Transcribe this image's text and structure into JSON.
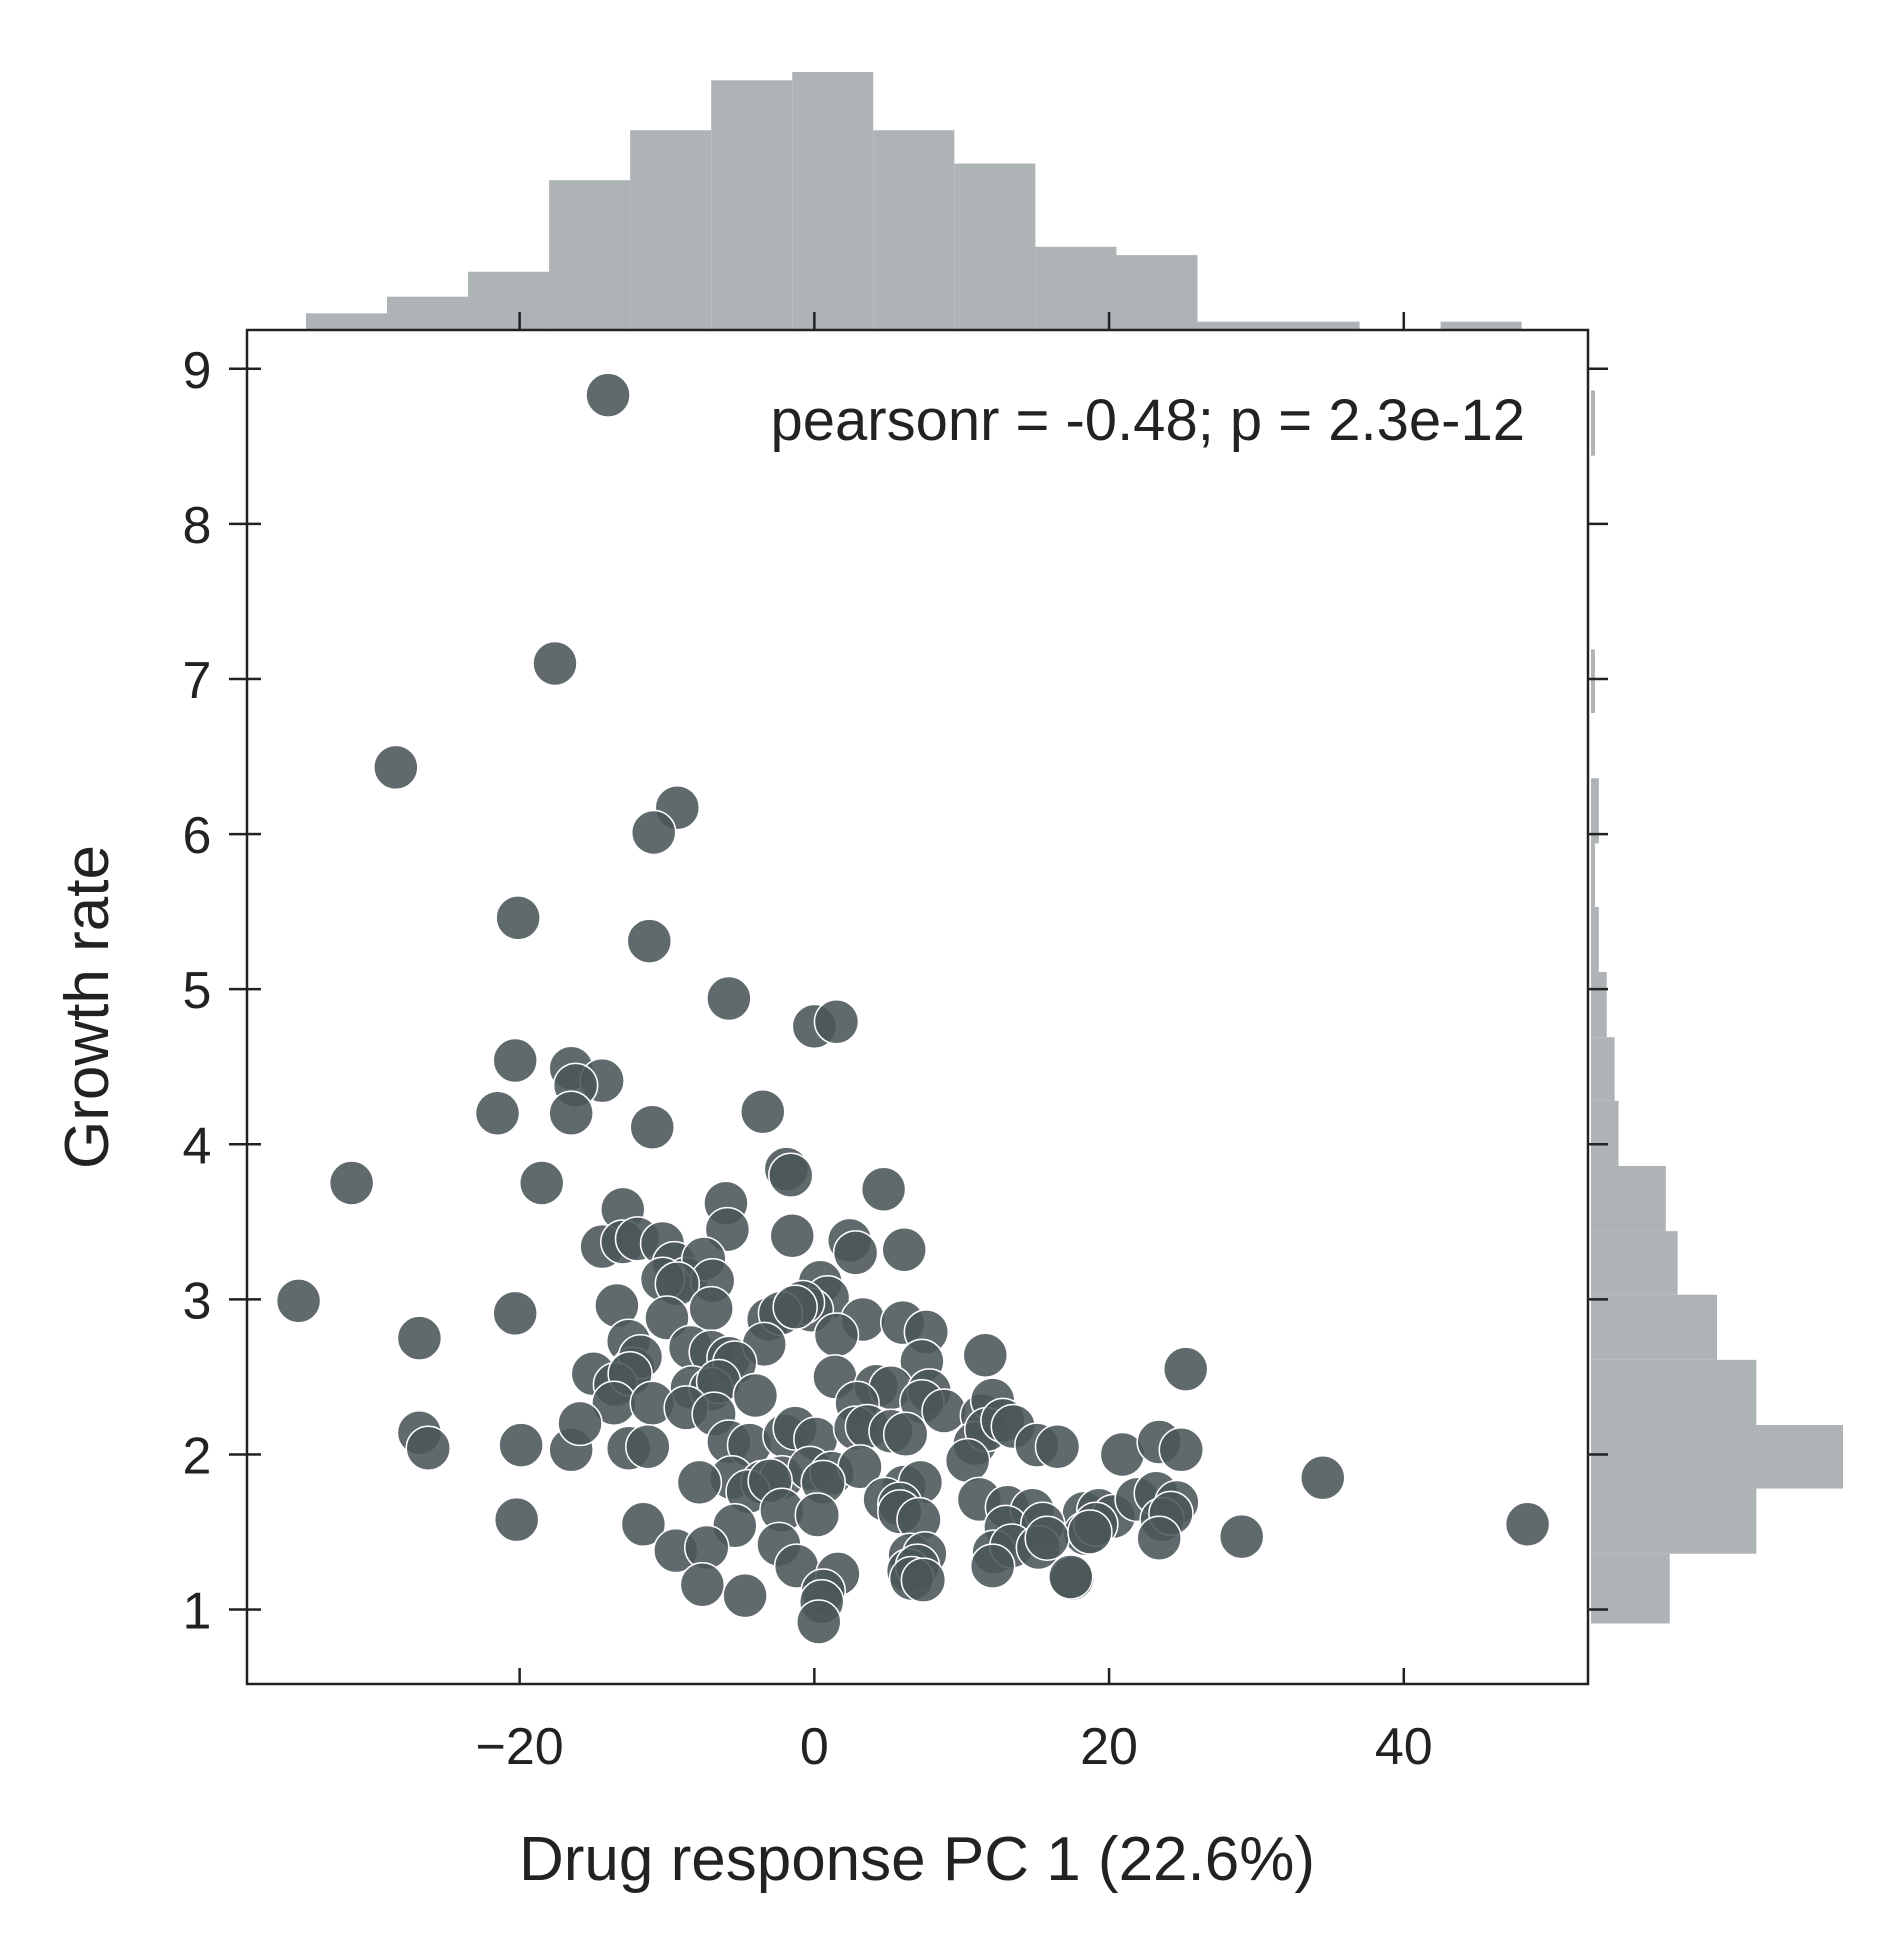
{
  "chart_data": {
    "type": "scatter",
    "title": "",
    "xlabel": "Drug response PC 1 (22.6%)",
    "ylabel": "Growth rate",
    "xlim": [
      -38.5,
      52.5
    ],
    "ylim": [
      0.52,
      9.25
    ],
    "xticks": [
      -20,
      0,
      20,
      40
    ],
    "xtick_labels": [
      "−20",
      "0",
      "20",
      "40"
    ],
    "yticks": [
      1,
      2,
      3,
      4,
      5,
      6,
      7,
      8,
      9
    ],
    "ytick_labels": [
      "1",
      "2",
      "3",
      "4",
      "5",
      "6",
      "7",
      "8",
      "9"
    ],
    "grid": false,
    "annotation": "pearsonr = -0.48; p = 2.3e-12",
    "annotation_position": "top-right",
    "colors": {
      "points": "#4a5558",
      "histogram": "#aeb3b6",
      "axes": "#222222"
    },
    "points": [
      [
        -14,
        8.83
      ],
      [
        -17.6,
        7.1
      ],
      [
        -28.4,
        6.43
      ],
      [
        -9.3,
        6.17
      ],
      [
        -10.9,
        6.01
      ],
      [
        -20.1,
        5.46
      ],
      [
        -11.2,
        5.31
      ],
      [
        -5.8,
        4.94
      ],
      [
        0,
        4.76
      ],
      [
        1.5,
        4.79
      ],
      [
        -20.3,
        4.54
      ],
      [
        -16.5,
        4.49
      ],
      [
        -14.4,
        4.41
      ],
      [
        -16.2,
        4.38
      ],
      [
        -21.5,
        4.2
      ],
      [
        -16.5,
        4.2
      ],
      [
        -3.5,
        4.21
      ],
      [
        -11,
        4.11
      ],
      [
        -31.4,
        3.75
      ],
      [
        -18.5,
        3.75
      ],
      [
        -1.9,
        3.84
      ],
      [
        -1.6,
        3.8
      ],
      [
        4.7,
        3.71
      ],
      [
        -13,
        3.58
      ],
      [
        -6,
        3.62
      ],
      [
        -5.9,
        3.45
      ],
      [
        -14.4,
        3.34
      ],
      [
        -13,
        3.37
      ],
      [
        -12,
        3.39
      ],
      [
        -10.3,
        3.36
      ],
      [
        -1.5,
        3.41
      ],
      [
        2.4,
        3.38
      ],
      [
        2.8,
        3.3
      ],
      [
        6.1,
        3.32
      ],
      [
        -9.5,
        3.23
      ],
      [
        -8.7,
        3.13
      ],
      [
        -10.3,
        3.13
      ],
      [
        -7.5,
        3.26
      ],
      [
        -6.9,
        3.12
      ],
      [
        -9.3,
        3.1
      ],
      [
        0.4,
        3.11
      ],
      [
        0.9,
        3.01
      ],
      [
        -0.2,
        2.93
      ],
      [
        -0.8,
        2.98
      ],
      [
        -35,
        2.99
      ],
      [
        -20.3,
        2.91
      ],
      [
        -13.4,
        2.96
      ],
      [
        -10,
        2.88
      ],
      [
        -7,
        2.94
      ],
      [
        -3.1,
        2.87
      ],
      [
        -2.3,
        2.91
      ],
      [
        -1.3,
        2.95
      ],
      [
        3.3,
        2.87
      ],
      [
        6,
        2.85
      ],
      [
        -26.8,
        2.75
      ],
      [
        -12.6,
        2.73
      ],
      [
        -8.4,
        2.69
      ],
      [
        -7,
        2.66
      ],
      [
        -5.8,
        2.62
      ],
      [
        -3.4,
        2.71
      ],
      [
        1.5,
        2.77
      ],
      [
        7.6,
        2.79
      ],
      [
        -12.3,
        2.55
      ],
      [
        -11.8,
        2.63
      ],
      [
        -5.4,
        2.59
      ],
      [
        7.3,
        2.6
      ],
      [
        11.6,
        2.64
      ],
      [
        -15,
        2.52
      ],
      [
        -13.5,
        2.45
      ],
      [
        -12.5,
        2.52
      ],
      [
        -8.3,
        2.43
      ],
      [
        -7,
        2.42
      ],
      [
        -6.5,
        2.47
      ],
      [
        -4,
        2.38
      ],
      [
        1.4,
        2.5
      ],
      [
        4.2,
        2.44
      ],
      [
        5.2,
        2.43
      ],
      [
        7.8,
        2.41
      ],
      [
        -13.6,
        2.33
      ],
      [
        -11,
        2.33
      ],
      [
        -8.7,
        2.3
      ],
      [
        -6.8,
        2.26
      ],
      [
        2.9,
        2.33
      ],
      [
        7.3,
        2.34
      ],
      [
        8.8,
        2.28
      ],
      [
        11.4,
        2.25
      ],
      [
        12.1,
        2.35
      ],
      [
        25.2,
        2.55
      ],
      [
        -26.8,
        2.14
      ],
      [
        -26.2,
        2.04
      ],
      [
        -19.9,
        2.06
      ],
      [
        -16.5,
        2.03
      ],
      [
        -15.9,
        2.2
      ],
      [
        -12.6,
        2.04
      ],
      [
        -11.3,
        2.05
      ],
      [
        -5.8,
        2.08
      ],
      [
        -4.4,
        2.06
      ],
      [
        -2,
        2.12
      ],
      [
        -1.3,
        2.17
      ],
      [
        0.1,
        2.1
      ],
      [
        2.8,
        2.17
      ],
      [
        3.6,
        2.18
      ],
      [
        5.2,
        2.15
      ],
      [
        6.2,
        2.13
      ],
      [
        10.9,
        2.07
      ],
      [
        11.7,
        2.16
      ],
      [
        12.8,
        2.22
      ],
      [
        13.5,
        2.18
      ],
      [
        15.1,
        2.06
      ],
      [
        16.5,
        2.05
      ],
      [
        20.9,
        2.0
      ],
      [
        23.4,
        2.08
      ],
      [
        24.9,
        2.03
      ],
      [
        -5.6,
        1.85
      ],
      [
        -3.5,
        1.82
      ],
      [
        -2.2,
        1.85
      ],
      [
        -0.3,
        1.91
      ],
      [
        1.2,
        1.88
      ],
      [
        3.1,
        1.92
      ],
      [
        6.1,
        1.79
      ],
      [
        7.2,
        1.82
      ],
      [
        10.4,
        1.96
      ],
      [
        34.5,
        1.85
      ],
      [
        -7.8,
        1.82
      ],
      [
        -4.5,
        1.76
      ],
      [
        -3,
        1.83
      ],
      [
        0.6,
        1.82
      ],
      [
        4.8,
        1.71
      ],
      [
        5.8,
        1.68
      ],
      [
        11.2,
        1.71
      ],
      [
        13.1,
        1.66
      ],
      [
        14.8,
        1.64
      ],
      [
        18.3,
        1.62
      ],
      [
        19.3,
        1.64
      ],
      [
        20.3,
        1.6
      ],
      [
        21.9,
        1.71
      ],
      [
        23.2,
        1.75
      ],
      [
        24.6,
        1.69
      ],
      [
        -20.2,
        1.58
      ],
      [
        -11.6,
        1.55
      ],
      [
        -5.4,
        1.54
      ],
      [
        -2.2,
        1.64
      ],
      [
        0.2,
        1.61
      ],
      [
        5.8,
        1.63
      ],
      [
        7.1,
        1.58
      ],
      [
        13,
        1.53
      ],
      [
        15.5,
        1.55
      ],
      [
        18.4,
        1.49
      ],
      [
        19.1,
        1.55
      ],
      [
        23.6,
        1.58
      ],
      [
        24.2,
        1.62
      ],
      [
        29,
        1.47
      ],
      [
        48.4,
        1.55
      ],
      [
        -9.4,
        1.38
      ],
      [
        -7.3,
        1.4
      ],
      [
        -2.4,
        1.42
      ],
      [
        6.5,
        1.35
      ],
      [
        7.5,
        1.36
      ],
      [
        12.2,
        1.37
      ],
      [
        13.4,
        1.41
      ],
      [
        15.2,
        1.4
      ],
      [
        15.8,
        1.46
      ],
      [
        18.7,
        1.5
      ],
      [
        23.4,
        1.46
      ],
      [
        -1.2,
        1.28
      ],
      [
        1.6,
        1.23
      ],
      [
        6.4,
        1.25
      ],
      [
        7,
        1.28
      ],
      [
        12.1,
        1.28
      ],
      [
        17.5,
        1.2
      ],
      [
        -7.6,
        1.16
      ],
      [
        -4.7,
        1.09
      ],
      [
        0.6,
        1.12
      ],
      [
        6.6,
        1.2
      ],
      [
        7.4,
        1.19
      ],
      [
        17.4,
        1.21
      ],
      [
        0.5,
        1.05
      ],
      [
        0.3,
        0.92
      ]
    ],
    "x_histogram": {
      "bin_edges": [
        -34.5,
        -29,
        -23.5,
        -18,
        -12.5,
        -7,
        -1.5,
        4,
        9.5,
        15,
        20.5,
        26,
        31.5,
        37,
        42.5,
        48
      ],
      "counts": [
        2,
        4,
        7,
        18,
        24,
        30,
        31,
        24,
        20,
        10,
        9,
        1,
        1,
        0,
        1
      ]
    },
    "y_histogram": {
      "bin_edges": [
        0.91,
        1.36,
        1.78,
        2.19,
        2.61,
        3.03,
        3.44,
        3.86,
        4.28,
        4.69,
        5.11,
        5.53,
        5.94,
        6.36,
        6.78,
        7.19,
        7.61,
        8.03,
        8.44,
        8.86
      ],
      "counts": [
        20,
        42,
        64,
        42,
        32,
        22,
        19,
        7,
        6,
        4,
        2,
        1,
        2,
        0,
        1,
        0,
        0,
        0,
        1
      ]
    }
  }
}
